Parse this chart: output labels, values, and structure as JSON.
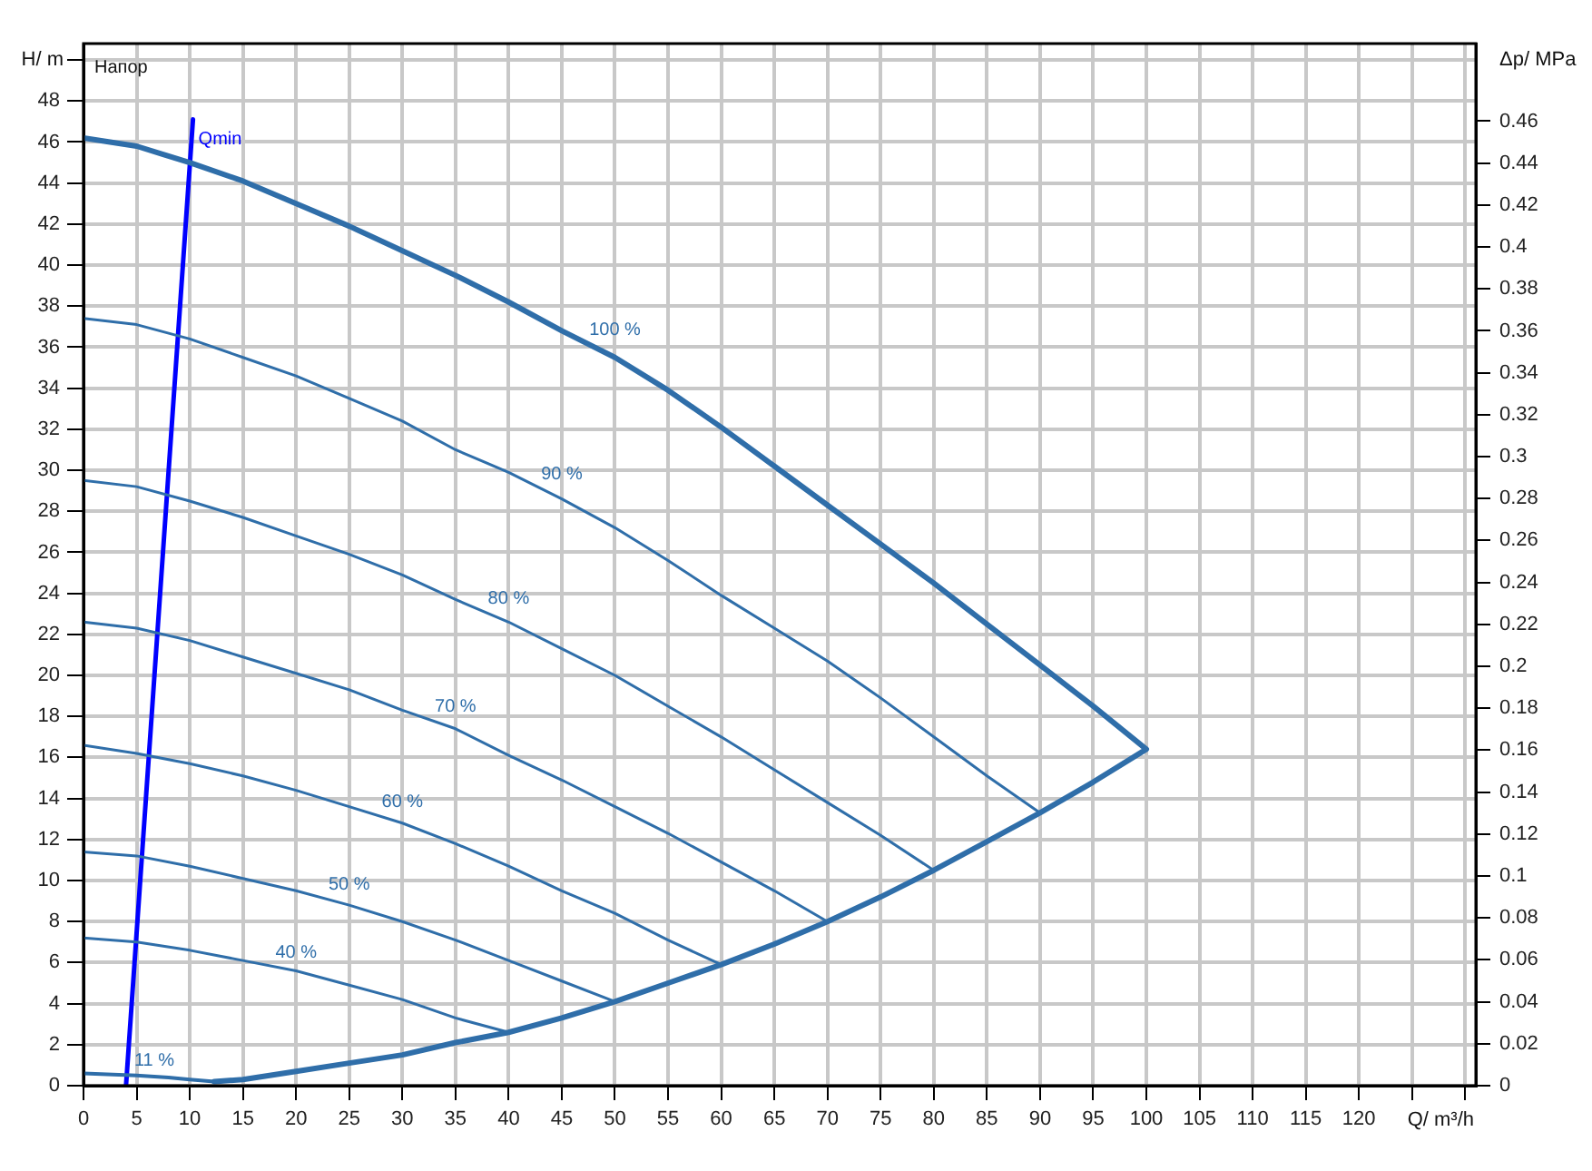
{
  "chart_data": {
    "type": "line",
    "xlabel": "Q/ m³/h",
    "ylabel": "H/ m",
    "y2label": "Δp/ MPa",
    "annotations": [
      "Напор"
    ],
    "xlim": [
      0,
      131
    ],
    "xticks": [
      0,
      5,
      10,
      15,
      20,
      25,
      30,
      35,
      40,
      45,
      50,
      55,
      60,
      65,
      70,
      75,
      80,
      85,
      90,
      95,
      100,
      105,
      110,
      115,
      120,
      {
        "value": 125,
        "label": null
      },
      {
        "value": 130,
        "label": null
      }
    ],
    "ylim": [
      0,
      50.8
    ],
    "yticks": [
      0,
      2,
      4,
      6,
      8,
      10,
      12,
      14,
      16,
      18,
      20,
      22,
      24,
      26,
      28,
      30,
      32,
      34,
      36,
      38,
      40,
      42,
      44,
      46,
      48,
      {
        "value": 50,
        "label": null
      }
    ],
    "y2lim": [
      0,
      0.497
    ],
    "y2ticks": [
      0,
      0.02,
      0.04,
      0.06,
      0.08,
      0.1,
      0.12,
      0.14,
      0.16,
      0.18,
      0.2,
      0.22,
      0.24,
      0.26,
      0.28,
      0.3,
      0.32,
      0.34,
      0.36,
      0.38,
      0.4,
      0.42,
      0.44,
      0.46
    ],
    "grid": true,
    "series": [
      {
        "name": "100 %",
        "color": "#2f6ea9",
        "x": [
          0,
          2.5,
          5,
          7.5,
          10,
          15,
          20,
          25,
          30,
          35,
          40,
          45,
          50,
          55,
          60,
          65,
          70,
          75,
          80,
          85,
          90,
          95,
          100,
          95,
          90,
          85,
          80,
          75,
          70,
          65,
          60,
          55,
          50,
          45,
          40,
          35,
          30,
          25,
          20,
          15,
          12.3
        ],
        "values": [
          46.2,
          46.0,
          45.8,
          45.4,
          45.0,
          44.1,
          43.0,
          41.9,
          40.7,
          39.5,
          38.2,
          36.8,
          35.5,
          33.9,
          32.1,
          30.2,
          28.3,
          26.4,
          24.5,
          22.5,
          20.5,
          18.5,
          16.4,
          14.8,
          13.3,
          11.9,
          10.5,
          9.2,
          8.0,
          6.9,
          5.9,
          5.0,
          4.1,
          3.3,
          2.6,
          2.1,
          1.5,
          1.1,
          0.7,
          0.3,
          0.2
        ]
      },
      {
        "name": "90 %",
        "color": "#2f6ea9",
        "x": [
          0,
          5,
          10,
          15,
          20,
          25,
          30,
          35,
          40,
          45,
          50,
          55,
          60,
          65,
          70,
          75,
          80,
          85,
          90
        ],
        "values": [
          37.4,
          37.1,
          36.4,
          35.5,
          34.6,
          33.5,
          32.4,
          31.0,
          29.9,
          28.6,
          27.2,
          25.6,
          23.9,
          22.3,
          20.7,
          18.9,
          17.0,
          15.1,
          13.3
        ]
      },
      {
        "name": "80 %",
        "color": "#2f6ea9",
        "x": [
          0,
          5,
          10,
          15,
          20,
          25,
          30,
          35,
          40,
          45,
          50,
          55,
          60,
          65,
          70,
          75,
          80
        ],
        "values": [
          29.5,
          29.2,
          28.5,
          27.7,
          26.8,
          25.9,
          24.9,
          23.7,
          22.6,
          21.3,
          20.0,
          18.5,
          17.0,
          15.4,
          13.8,
          12.2,
          10.5
        ]
      },
      {
        "name": "70 %",
        "color": "#2f6ea9",
        "x": [
          0,
          5,
          10,
          15,
          20,
          25,
          30,
          35,
          40,
          45,
          50,
          55,
          60,
          65,
          70
        ],
        "values": [
          22.6,
          22.3,
          21.7,
          20.9,
          20.1,
          19.3,
          18.3,
          17.4,
          16.1,
          14.9,
          13.6,
          12.3,
          10.9,
          9.5,
          8.0
        ]
      },
      {
        "name": "60 %",
        "color": "#2f6ea9",
        "x": [
          0,
          5,
          10,
          15,
          20,
          25,
          30,
          35,
          40,
          45,
          50,
          55,
          60
        ],
        "values": [
          16.6,
          16.2,
          15.7,
          15.1,
          14.4,
          13.6,
          12.8,
          11.8,
          10.7,
          9.5,
          8.4,
          7.1,
          5.9
        ]
      },
      {
        "name": "50 %",
        "color": "#2f6ea9",
        "x": [
          0,
          5,
          10,
          15,
          20,
          25,
          30,
          35,
          40,
          45,
          50
        ],
        "values": [
          11.4,
          11.2,
          10.7,
          10.1,
          9.5,
          8.8,
          8.0,
          7.1,
          6.1,
          5.1,
          4.1
        ]
      },
      {
        "name": "40 %",
        "color": "#2f6ea9",
        "x": [
          0,
          5,
          10,
          15,
          20,
          25,
          30,
          35,
          40
        ],
        "values": [
          7.2,
          7.0,
          6.6,
          6.1,
          5.6,
          4.9,
          4.2,
          3.3,
          2.6
        ]
      },
      {
        "name": "11 %",
        "color": "#2f6ea9",
        "x": [
          0,
          5,
          8,
          10,
          12.3
        ],
        "values": [
          0.6,
          0.5,
          0.4,
          0.3,
          0.2
        ]
      },
      {
        "name": "Qmin",
        "color": "#0000ff",
        "x": [
          4.0,
          10.3
        ],
        "values": [
          0,
          47.1
        ]
      }
    ]
  }
}
